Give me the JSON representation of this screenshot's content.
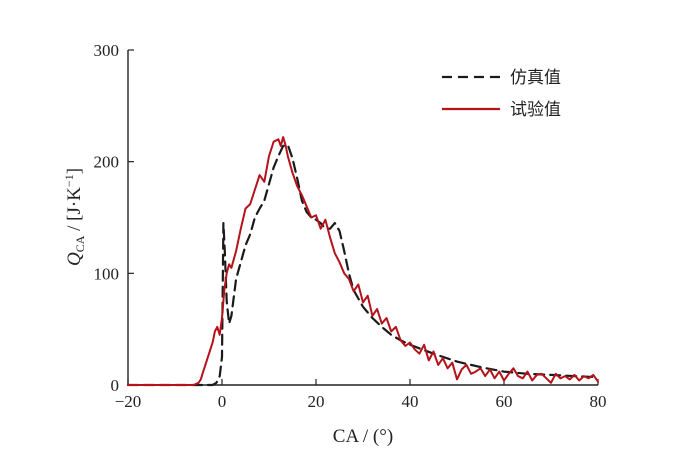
{
  "chart_data": {
    "type": "line",
    "xlabel": "CA / (°)",
    "ylabel": {
      "symbol": "Q",
      "subscript": "CA",
      "unit_prefix": " / [J·K",
      "unit_exp": "−1",
      "unit_suffix": "]"
    },
    "xlim": [
      -20,
      80
    ],
    "ylim": [
      0,
      300
    ],
    "xticks": [
      -20,
      0,
      20,
      40,
      60,
      80
    ],
    "xtick_labels": [
      "−20",
      "0",
      "20",
      "40",
      "60",
      "80"
    ],
    "yticks": [
      0,
      100,
      200,
      300
    ],
    "ytick_labels": [
      "0",
      "100",
      "200",
      "300"
    ],
    "grid": false,
    "legend_position": "top-right",
    "series": [
      {
        "name": "仿真值",
        "color": "#1a1a1a",
        "dash": "dashed",
        "x": [
          -20,
          -2,
          -1.2,
          -0.5,
          0,
          0.3,
          0.6,
          1.0,
          1.5,
          2,
          3,
          4,
          5,
          6,
          7,
          8,
          9,
          10,
          11,
          12,
          13,
          14,
          15,
          16,
          17,
          18,
          19,
          20,
          21,
          22,
          23,
          24,
          25,
          26,
          27,
          28,
          30,
          32,
          34,
          36,
          38,
          40,
          45,
          50,
          55,
          60,
          65,
          70,
          75,
          80
        ],
        "values": [
          0,
          0,
          2,
          8,
          25,
          145,
          120,
          75,
          55,
          62,
          95,
          110,
          125,
          135,
          150,
          158,
          165,
          180,
          195,
          205,
          214,
          215,
          203,
          185,
          165,
          155,
          150,
          148,
          145,
          140,
          140,
          145,
          138,
          120,
          100,
          85,
          70,
          60,
          52,
          45,
          40,
          36,
          28,
          21,
          16,
          12,
          10,
          9,
          8,
          7
        ]
      },
      {
        "name": "试验值",
        "color": "#b5121b",
        "dash": "solid",
        "x": [
          -20,
          -6,
          -5,
          -4.5,
          -4,
          -3,
          -2,
          -1.5,
          -1,
          -0.5,
          0,
          0.5,
          1,
          1.5,
          2,
          3,
          4,
          5,
          6,
          7,
          8,
          9,
          10,
          11,
          12,
          12.5,
          13,
          13.5,
          14,
          15,
          16,
          17,
          18,
          19,
          20,
          21,
          22,
          23,
          24,
          25,
          26,
          27,
          28,
          29,
          30,
          31,
          32,
          33,
          34,
          35,
          36,
          37,
          38,
          39,
          40,
          41,
          42,
          43,
          44,
          45,
          46,
          47,
          48,
          49,
          50,
          51,
          52,
          53,
          54,
          55,
          56,
          57,
          58,
          59,
          60,
          61,
          62,
          63,
          64,
          65,
          66,
          67,
          68,
          69,
          70,
          71,
          72,
          73,
          74,
          75,
          76,
          77,
          78,
          79,
          80
        ],
        "values": [
          0,
          0,
          2,
          5,
          12,
          25,
          38,
          48,
          52,
          45,
          60,
          85,
          100,
          108,
          105,
          120,
          140,
          158,
          162,
          175,
          188,
          182,
          205,
          218,
          220,
          214,
          222,
          215,
          205,
          190,
          178,
          170,
          160,
          150,
          152,
          140,
          148,
          132,
          118,
          110,
          100,
          95,
          84,
          90,
          74,
          80,
          62,
          68,
          55,
          60,
          48,
          52,
          40,
          35,
          38,
          32,
          28,
          36,
          22,
          30,
          18,
          24,
          15,
          20,
          5,
          14,
          18,
          10,
          12,
          15,
          8,
          14,
          6,
          12,
          4,
          10,
          15,
          8,
          6,
          12,
          4,
          9,
          10,
          6,
          2,
          10,
          6,
          8,
          5,
          9,
          4,
          8,
          6,
          9,
          3
        ]
      }
    ]
  }
}
